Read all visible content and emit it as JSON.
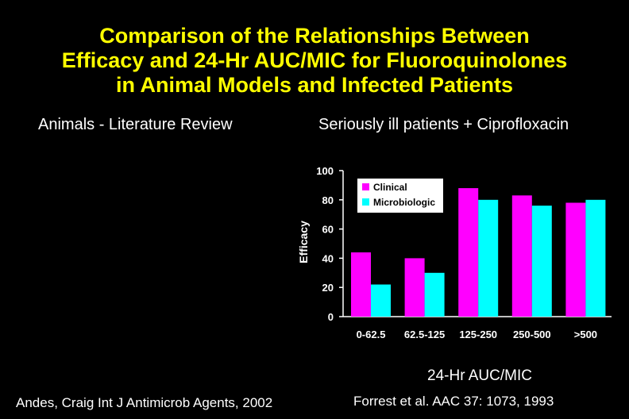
{
  "slide": {
    "title_lines": [
      "Comparison of the Relationships Between",
      "Efficacy and 24-Hr AUC/MIC for Fluoroquinolones",
      "in Animal Models and Infected Patients"
    ],
    "left_subtitle": "Animals - Literature Review",
    "right_subtitle": "Seriously ill patients + Ciprofloxacin",
    "left_citation": "Andes, Craig  Int J Antimicrob Agents, 2002",
    "right_citation": "Forrest et al.  AAC 37: 1073, 1993"
  },
  "colors": {
    "clinical": "#ff00ff",
    "microbiologic": "#00ffff",
    "title": "#ffff00",
    "text": "#ffffff",
    "background": "#000000"
  },
  "chart_data": {
    "type": "bar",
    "categories": [
      "0-62.5",
      "62.5-125",
      "125-250",
      "250-500",
      ">500"
    ],
    "series": [
      {
        "name": "Clinical",
        "values": [
          44,
          40,
          88,
          83,
          78
        ]
      },
      {
        "name": "Microbiologic",
        "values": [
          22,
          30,
          80,
          76,
          80
        ]
      }
    ],
    "xlabel": "24-Hr AUC/MIC",
    "ylabel": "Efficacy",
    "ylim": [
      0,
      100
    ],
    "yticks": [
      "0",
      "20",
      "40",
      "60",
      "80",
      "100"
    ],
    "grid": false,
    "legend": "top-left"
  }
}
